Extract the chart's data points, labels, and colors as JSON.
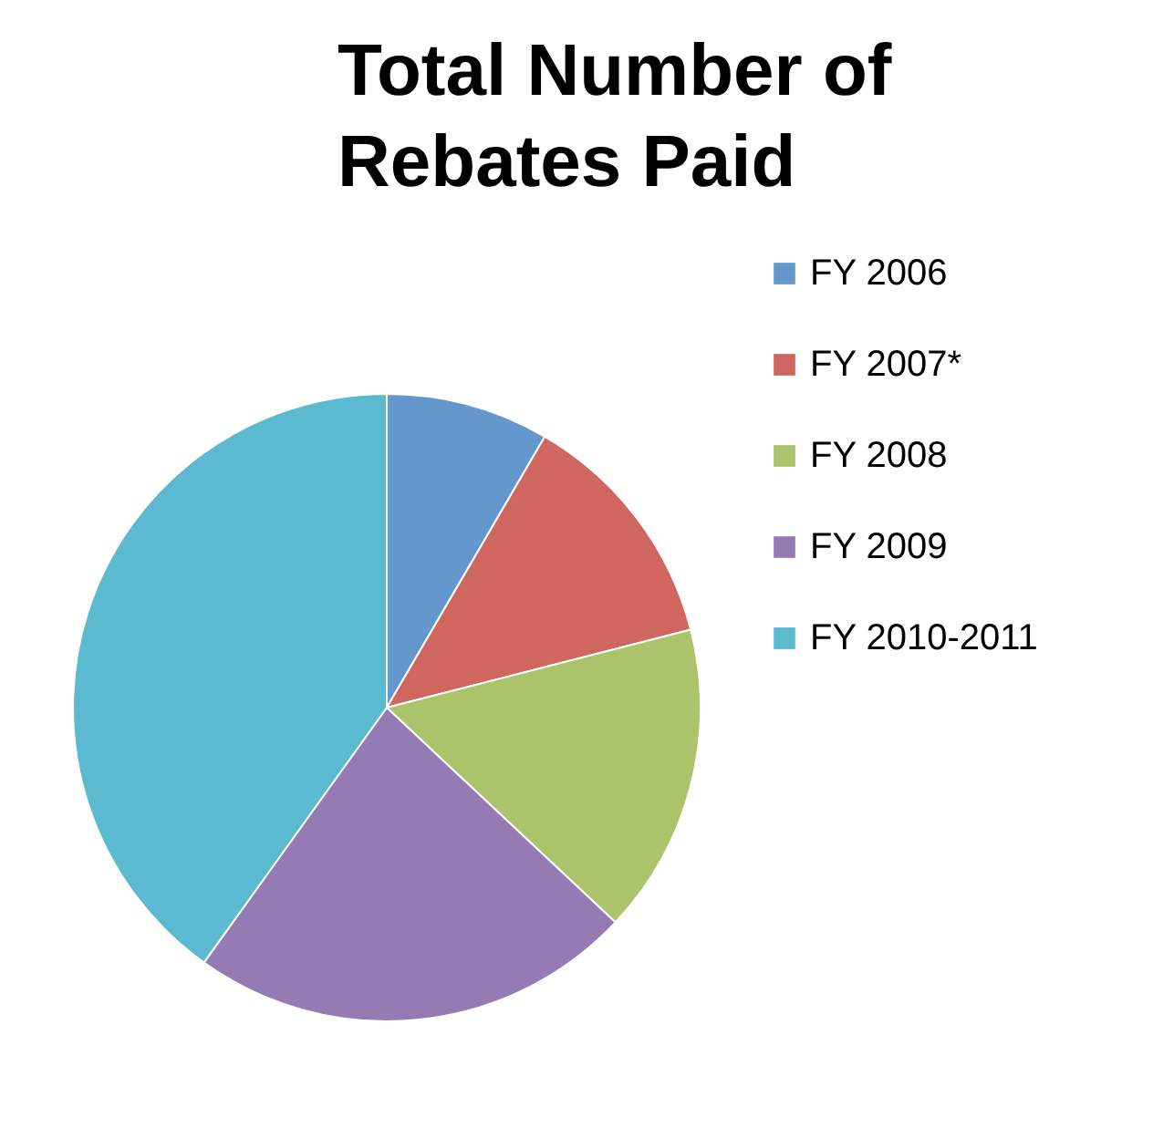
{
  "chart_data": {
    "type": "pie",
    "title": "Total Number of Rebates Paid",
    "categories": [
      "FY 2006",
      "FY 2007*",
      "FY 2008",
      "FY 2009",
      "FY 2010-2011"
    ],
    "values": [
      8.4,
      12.6,
      16.0,
      22.9,
      40.1
    ],
    "colors": [
      "#6497cb",
      "#cf6660",
      "#abc46b",
      "#957bb4",
      "#5bb9d0"
    ],
    "legend": "right"
  }
}
